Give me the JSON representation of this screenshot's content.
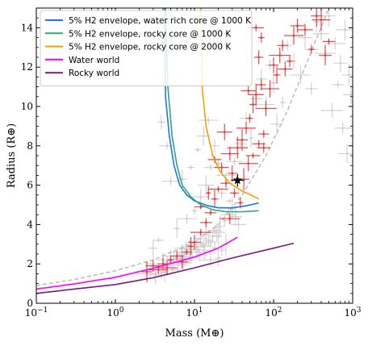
{
  "chart_data": {
    "type": "scatter",
    "xlabel": "Mass (M⊕)",
    "ylabel": "Radius (R⊕)",
    "xscale": "log",
    "xlim": [
      0.1,
      1000
    ],
    "ylim": [
      0,
      15
    ],
    "x_ticks": [
      0.1,
      1,
      10,
      100,
      1000
    ],
    "x_tick_labels": [
      {
        "base": "10",
        "exp": "−1"
      },
      {
        "base": "10",
        "exp": "0"
      },
      {
        "base": "10",
        "exp": "1"
      },
      {
        "base": "10",
        "exp": "2"
      },
      {
        "base": "10",
        "exp": "3"
      }
    ],
    "y_ticks": [
      0,
      2,
      4,
      6,
      8,
      10,
      12,
      14
    ],
    "y_tick_labels": [
      "0",
      "2",
      "4",
      "6",
      "8",
      "10",
      "12",
      "14"
    ],
    "grid": false,
    "legend_position": "top-left",
    "series": [
      {
        "name": "5% H2 envelope, water rich core @ 1000 K",
        "kind": "line",
        "color": "#1f77e0",
        "points": [
          [
            4.2,
            15.0
          ],
          [
            4.3,
            10.5
          ],
          [
            4.8,
            8.5
          ],
          [
            5.5,
            7.0
          ],
          [
            6.5,
            6.0
          ],
          [
            8.0,
            5.5
          ],
          [
            10.0,
            5.2
          ],
          [
            15.0,
            4.95
          ],
          [
            20.0,
            4.85
          ],
          [
            30.0,
            4.85
          ],
          [
            45.0,
            4.95
          ],
          [
            65.0,
            5.1
          ]
        ]
      },
      {
        "name": "5% H2 envelope, rocky core @ 1000 K",
        "kind": "line",
        "color": "#2ca87f",
        "points": [
          [
            4.3,
            15.0
          ],
          [
            4.6,
            11.0
          ],
          [
            5.2,
            8.5
          ],
          [
            6.0,
            7.0
          ],
          [
            7.0,
            6.0
          ],
          [
            9.0,
            5.4
          ],
          [
            12.0,
            5.0
          ],
          [
            17.0,
            4.75
          ],
          [
            25.0,
            4.65
          ],
          [
            40.0,
            4.65
          ],
          [
            65.0,
            4.7
          ]
        ]
      },
      {
        "name": "5% H2 envelope, rocky core @ 2000 K",
        "kind": "line",
        "color": "#f5a000",
        "points": [
          [
            12.0,
            15.0
          ],
          [
            12.5,
            11.0
          ],
          [
            14.0,
            9.0
          ],
          [
            17.0,
            7.5
          ],
          [
            21.0,
            6.7
          ],
          [
            28.0,
            6.1
          ],
          [
            40.0,
            5.7
          ],
          [
            55.0,
            5.45
          ],
          [
            65.0,
            5.3
          ]
        ]
      },
      {
        "name": "Water world",
        "kind": "line",
        "color": "#ff00ff",
        "points": [
          [
            0.1,
            0.72
          ],
          [
            0.3,
            0.98
          ],
          [
            1.0,
            1.32
          ],
          [
            3.0,
            1.78
          ],
          [
            10.0,
            2.35
          ],
          [
            20.0,
            2.8
          ],
          [
            35.0,
            3.35
          ]
        ]
      },
      {
        "name": "Rocky world",
        "kind": "line",
        "color": "#7b1a7e",
        "points": [
          [
            0.1,
            0.5
          ],
          [
            0.3,
            0.72
          ],
          [
            1.0,
            0.95
          ],
          [
            3.0,
            1.3
          ],
          [
            10.0,
            1.8
          ],
          [
            30.0,
            2.3
          ],
          [
            100.0,
            2.8
          ],
          [
            180.0,
            3.05
          ]
        ]
      },
      {
        "kind": "dashed",
        "color": "#bbbbbb",
        "points": [
          [
            0.1,
            0.9
          ],
          [
            0.3,
            1.2
          ],
          [
            1.0,
            1.65
          ],
          [
            3.0,
            2.2
          ],
          [
            10.0,
            3.1
          ],
          [
            20.0,
            4.0
          ],
          [
            40.0,
            5.5
          ],
          [
            80.0,
            7.5
          ],
          [
            150.0,
            9.8
          ],
          [
            300.0,
            12.8
          ],
          [
            500.0,
            15.0
          ]
        ]
      },
      {
        "kind": "marker",
        "marker": "star",
        "color": "#000000",
        "points": [
          [
            35.0,
            6.25
          ]
        ]
      }
    ],
    "scatter_gray_color": "#cccccc",
    "scatter_red_color": "#e8373a",
    "scatter_gray": [
      [
        3.0,
        2.0
      ],
      [
        3.5,
        1.8
      ],
      [
        4.0,
        2.2
      ],
      [
        4.5,
        1.9
      ],
      [
        5.0,
        2.4
      ],
      [
        5.5,
        2.1
      ],
      [
        6.0,
        2.6
      ],
      [
        6.5,
        2.3
      ],
      [
        7.0,
        2.8
      ],
      [
        7.5,
        2.5
      ],
      [
        8.0,
        2.9
      ],
      [
        9.0,
        2.6
      ],
      [
        10.0,
        3.1
      ],
      [
        11.0,
        2.7
      ],
      [
        12.0,
        3.3
      ],
      [
        13.0,
        2.9
      ],
      [
        14.0,
        3.5
      ],
      [
        16.0,
        3.1
      ],
      [
        18.0,
        3.7
      ],
      [
        20.0,
        3.4
      ],
      [
        22.0,
        2.7
      ],
      [
        25.0,
        3.0
      ],
      [
        4.2,
        1.6
      ],
      [
        5.2,
        1.7
      ],
      [
        6.2,
        1.95
      ],
      [
        7.2,
        2.05
      ],
      [
        8.5,
        2.2
      ],
      [
        9.5,
        2.35
      ],
      [
        11.5,
        2.45
      ],
      [
        13.5,
        2.6
      ],
      [
        2.5,
        1.5
      ],
      [
        2.8,
        1.7
      ],
      [
        3.2,
        1.45
      ],
      [
        3.8,
        1.55
      ],
      [
        4.8,
        2.0
      ],
      [
        5.8,
        2.25
      ],
      [
        6.8,
        2.4
      ],
      [
        7.8,
        2.6
      ],
      [
        8.8,
        2.75
      ],
      [
        10.5,
        2.85
      ],
      [
        12.5,
        3.0
      ],
      [
        15.0,
        3.2
      ],
      [
        17.0,
        3.4
      ],
      [
        19.0,
        3.6
      ],
      [
        21.0,
        3.9
      ],
      [
        24.0,
        4.2
      ],
      [
        27.0,
        4.5
      ],
      [
        30.0,
        4.8
      ],
      [
        33.0,
        4.4
      ],
      [
        36.0,
        4.0
      ],
      [
        6.0,
        3.8
      ],
      [
        8.0,
        4.3
      ],
      [
        10.0,
        4.7
      ],
      [
        12.0,
        5.4
      ],
      [
        14.0,
        6.0
      ],
      [
        7.0,
        6.3
      ],
      [
        9.0,
        6.9
      ],
      [
        11.0,
        7.8
      ],
      [
        13.0,
        8.5
      ],
      [
        15.0,
        9.3
      ],
      [
        16.0,
        6.9
      ],
      [
        18.0,
        8.0
      ],
      [
        20.0,
        7.1
      ],
      [
        22.0,
        5.6
      ],
      [
        25.0,
        6.5
      ],
      [
        28.0,
        5.2
      ],
      [
        32.0,
        7.2
      ],
      [
        38.0,
        8.1
      ],
      [
        45.0,
        9.4
      ],
      [
        52.0,
        8.4
      ],
      [
        60.0,
        10.4
      ],
      [
        70.0,
        11.4
      ],
      [
        80.0,
        10.1
      ],
      [
        90.0,
        12.1
      ],
      [
        100.0,
        11.2
      ],
      [
        120.0,
        12.6
      ],
      [
        150.0,
        13.1
      ],
      [
        180.0,
        12.3
      ],
      [
        200.0,
        14.1
      ],
      [
        250.0,
        13.5
      ],
      [
        300.0,
        12.9
      ],
      [
        350.0,
        14.3
      ],
      [
        400.0,
        13.7
      ],
      [
        450.0,
        12.7
      ],
      [
        500.0,
        14.6
      ],
      [
        600.0,
        13.2
      ],
      [
        700.0,
        12.2
      ],
      [
        800.0,
        13.9
      ],
      [
        900.0,
        11.6
      ],
      [
        950.0,
        10.6
      ],
      [
        650.0,
        11.1
      ],
      [
        550.0,
        9.8
      ],
      [
        750.0,
        8.9
      ],
      [
        850.0,
        7.6
      ],
      [
        300.0,
        10.9
      ],
      [
        220.0,
        11.6
      ],
      [
        130.0,
        10.2
      ],
      [
        110.0,
        9.1
      ],
      [
        4.5,
        8.0
      ],
      [
        5.0,
        6.2
      ],
      [
        3.8,
        9.2
      ],
      [
        3.5,
        3.2
      ],
      [
        16.0,
        2.2
      ],
      [
        18.0,
        2.8
      ],
      [
        20.0,
        2.3
      ],
      [
        3.0,
        2.8
      ]
    ],
    "scatter_red": [
      [
        2.5,
        1.6
      ],
      [
        3.0,
        1.9
      ],
      [
        3.5,
        1.7
      ],
      [
        4.0,
        2.0
      ],
      [
        4.5,
        1.8
      ],
      [
        5.0,
        2.2
      ],
      [
        6.0,
        2.4
      ],
      [
        7.0,
        2.1
      ],
      [
        8.0,
        2.6
      ],
      [
        9.0,
        2.9
      ],
      [
        10.0,
        3.1
      ],
      [
        12.0,
        3.6
      ],
      [
        14.0,
        4.1
      ],
      [
        16.0,
        4.6
      ],
      [
        18.0,
        5.3
      ],
      [
        20.0,
        5.8
      ],
      [
        22.0,
        6.9
      ],
      [
        25.0,
        6.1
      ],
      [
        28.0,
        7.6
      ],
      [
        30.0,
        6.6
      ],
      [
        35.0,
        7.9
      ],
      [
        40.0,
        8.3
      ],
      [
        45.0,
        8.9
      ],
      [
        50.0,
        9.4
      ],
      [
        55.0,
        10.1
      ],
      [
        60.0,
        10.6
      ],
      [
        70.0,
        11.1
      ],
      [
        75.0,
        8.6
      ],
      [
        80.0,
        9.9
      ],
      [
        90.0,
        10.9
      ],
      [
        100.0,
        12.1
      ],
      [
        110.0,
        11.6
      ],
      [
        120.0,
        12.6
      ],
      [
        130.0,
        13.1
      ],
      [
        140.0,
        11.9
      ],
      [
        160.0,
        12.3
      ],
      [
        180.0,
        13.6
      ],
      [
        200.0,
        14.1
      ],
      [
        250.0,
        13.9
      ],
      [
        300.0,
        12.9
      ],
      [
        350.0,
        14.6
      ],
      [
        400.0,
        14.4
      ],
      [
        450.0,
        12.6
      ],
      [
        500.0,
        13.3
      ],
      [
        28.0,
        4.3
      ],
      [
        32.0,
        5.6
      ],
      [
        38.0,
        5.1
      ],
      [
        42.0,
        6.3
      ],
      [
        48.0,
        7.1
      ],
      [
        55.0,
        7.5
      ],
      [
        65.0,
        8.1
      ],
      [
        75.0,
        7.9
      ],
      [
        65.0,
        12.5
      ],
      [
        48.0,
        10.8
      ],
      [
        24.0,
        8.7
      ],
      [
        18.0,
        7.3
      ],
      [
        15.0,
        5.6
      ],
      [
        12.0,
        4.9
      ],
      [
        60.0,
        14.0
      ],
      [
        70.0,
        13.5
      ]
    ]
  }
}
